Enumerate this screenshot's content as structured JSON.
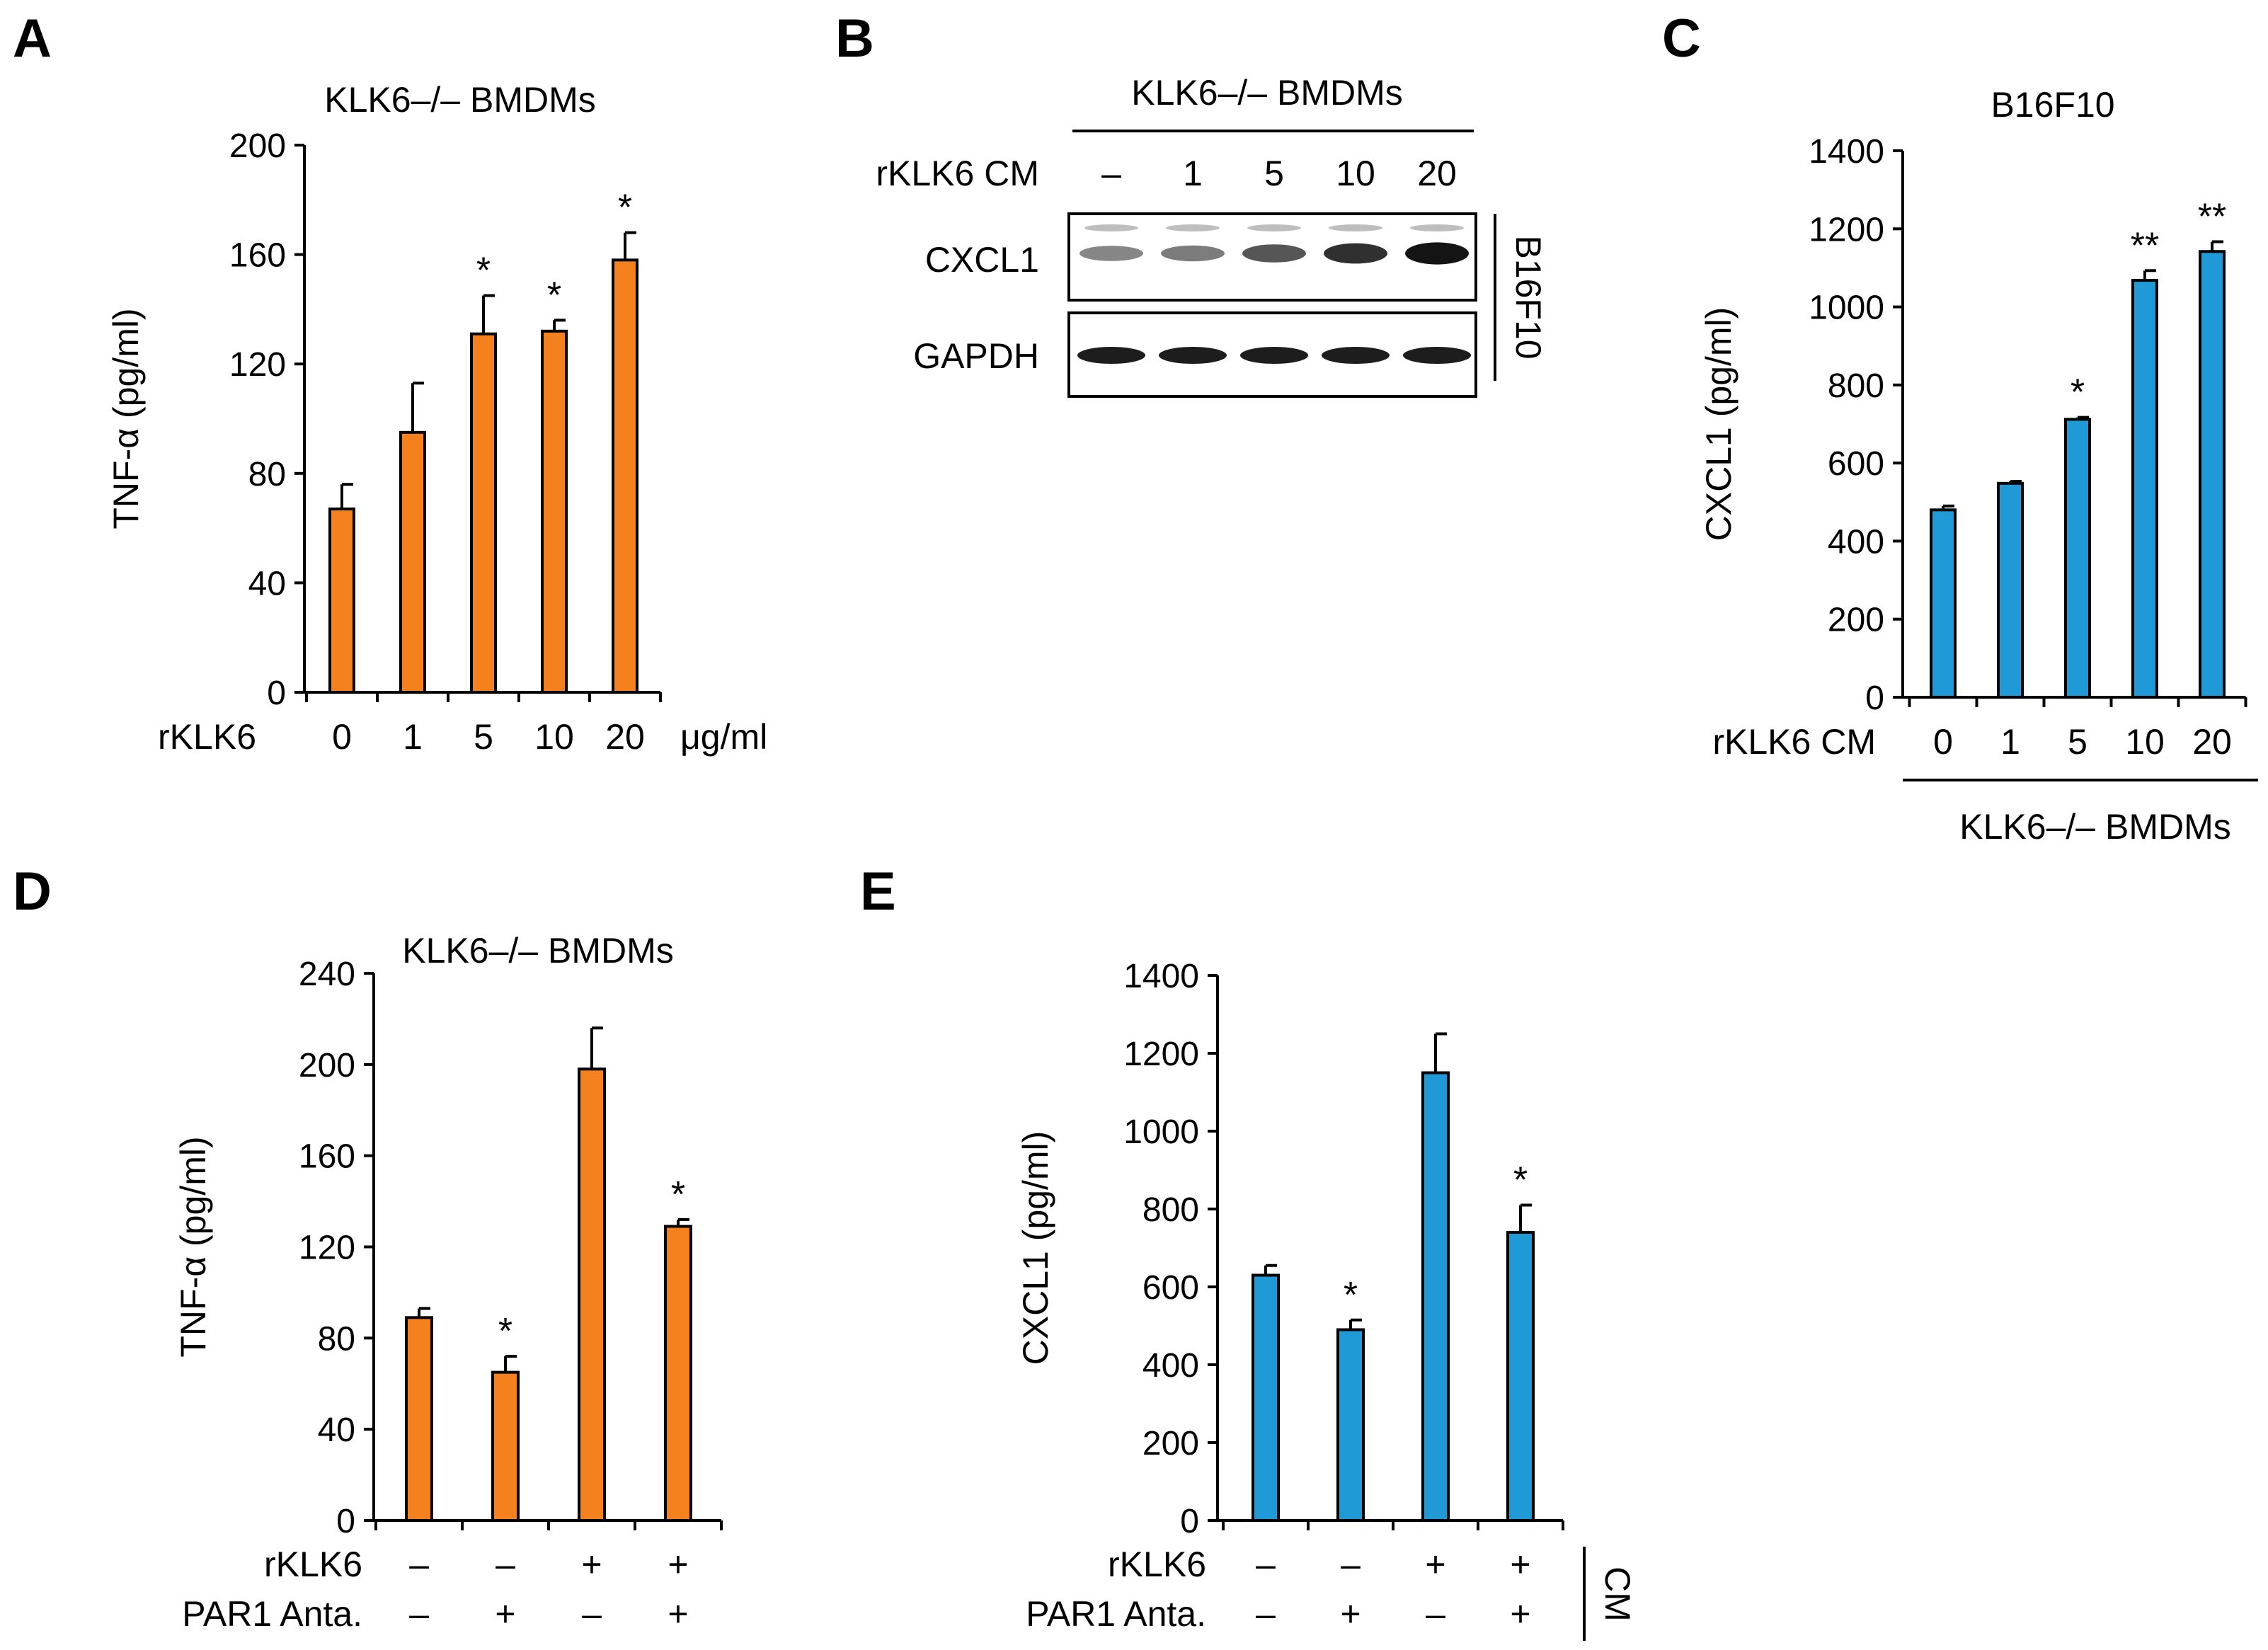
{
  "panel_letters": [
    "A",
    "B",
    "C",
    "D",
    "E"
  ],
  "colors": {
    "orange": "#f5801e",
    "blue": "#1f9ad6",
    "axis": "#000000"
  },
  "chart_data": [
    {
      "panel": "A",
      "type": "bar",
      "title": "KLK6–/– BMDMs",
      "ylabel": "TNF-α (pg/ml)",
      "row_label": "rKLK6",
      "x_unit": "μg/ml",
      "categories": [
        "0",
        "1",
        "5",
        "10",
        "20"
      ],
      "values": [
        67,
        95,
        131,
        132,
        158
      ],
      "errors": [
        9,
        18,
        14,
        4,
        10
      ],
      "significance": [
        "",
        "",
        "*",
        "*",
        "*"
      ],
      "ylim": [
        0,
        200
      ],
      "yticks": [
        "0",
        "40",
        "80",
        "120",
        "160",
        "200"
      ],
      "color": "#f5801e"
    },
    {
      "panel": "C",
      "type": "bar",
      "title": "B16F10",
      "ylabel": "CXCL1 (pg/ml)",
      "row_label": "rKLK6 CM",
      "group_label": "KLK6–/– BMDMs",
      "categories": [
        "0",
        "1",
        "5",
        "10",
        "20"
      ],
      "values": [
        480,
        548,
        712,
        1068,
        1142
      ],
      "errors": [
        10,
        5,
        5,
        25,
        25
      ],
      "significance": [
        "",
        "",
        "*",
        "**",
        "**"
      ],
      "ylim": [
        0,
        1400
      ],
      "yticks": [
        "0",
        "200",
        "400",
        "600",
        "800",
        "1000",
        "1200",
        "1400"
      ],
      "color": "#1f9ad6"
    },
    {
      "panel": "D",
      "type": "bar",
      "title": "KLK6–/– BMDMs",
      "ylabel": "TNF-α (pg/ml)",
      "rows": [
        {
          "label": "rKLK6",
          "signs": [
            "–",
            "–",
            "+",
            "+"
          ]
        },
        {
          "label": "PAR1 Anta.",
          "signs": [
            "–",
            "+",
            "–",
            "+"
          ]
        }
      ],
      "values": [
        89,
        65,
        198,
        129
      ],
      "errors": [
        4,
        7,
        18,
        3
      ],
      "significance": [
        "",
        "*",
        "",
        "*"
      ],
      "ylim": [
        0,
        240
      ],
      "yticks": [
        "0",
        "40",
        "80",
        "120",
        "160",
        "200",
        "240"
      ],
      "color": "#f5801e"
    },
    {
      "panel": "E",
      "type": "bar",
      "ylabel": "CXCL1 (pg/ml)",
      "side_label": "CM",
      "rows": [
        {
          "label": "rKLK6",
          "signs": [
            "–",
            "–",
            "+",
            "+"
          ]
        },
        {
          "label": "PAR1 Anta.",
          "signs": [
            "–",
            "+",
            "–",
            "+"
          ]
        }
      ],
      "values": [
        630,
        490,
        1150,
        740
      ],
      "errors": [
        25,
        25,
        100,
        70
      ],
      "significance": [
        "",
        "*",
        "",
        "*"
      ],
      "ylim": [
        0,
        1400
      ],
      "yticks": [
        "0",
        "200",
        "400",
        "600",
        "800",
        "1000",
        "1200",
        "1400"
      ],
      "color": "#1f9ad6"
    }
  ],
  "blot": {
    "panel": "B",
    "title": "KLK6–/– BMDMs",
    "row_label": "rKLK6 CM",
    "lanes": [
      "–",
      "1",
      "5",
      "10",
      "20"
    ],
    "bands": [
      "CXCL1",
      "GAPDH"
    ],
    "cell_line": "B16F10",
    "cxcl1_intensity": [
      0.35,
      0.4,
      0.6,
      0.8,
      0.95
    ],
    "gapdh_intensity": [
      0.9,
      0.9,
      0.9,
      0.9,
      0.9
    ]
  }
}
